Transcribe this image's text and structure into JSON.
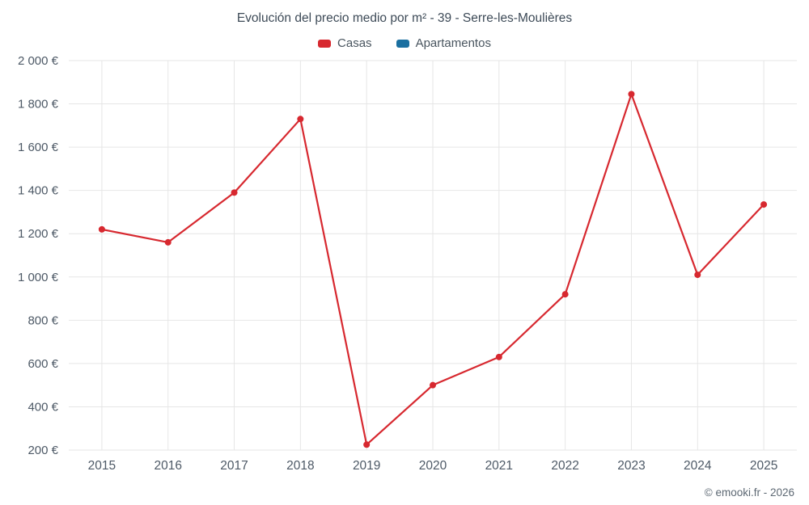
{
  "footer": {
    "copyright": "© emooki.fr - 2026"
  },
  "chart_data": {
    "type": "line",
    "title": "Evolución del precio medio por m² - 39 - Serre-les-Moulières",
    "categories": [
      "2015",
      "2016",
      "2017",
      "2018",
      "2019",
      "2020",
      "2021",
      "2022",
      "2023",
      "2024",
      "2025"
    ],
    "series": [
      {
        "name": "Casas",
        "color": "#d7282f",
        "values": [
          1220,
          1160,
          1390,
          1730,
          225,
          500,
          630,
          920,
          1845,
          1010,
          1335
        ]
      },
      {
        "name": "Apartamentos",
        "color": "#1a6fa0",
        "values": []
      }
    ],
    "ylim": [
      200,
      2000
    ],
    "ytick_step": 200,
    "y_unit": "€",
    "grid": true,
    "legend_position": "top",
    "grid_color": "#e6e6e6",
    "tick_label_color": "#4d5966"
  }
}
